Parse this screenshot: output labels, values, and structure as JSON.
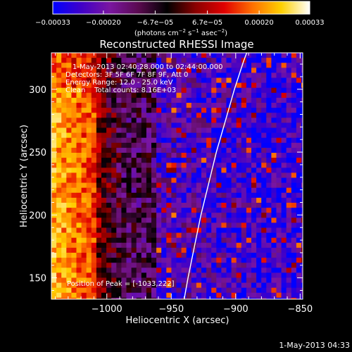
{
  "chart_data": {
    "type": "heatmap",
    "title": "Reconstructed RHESSI Image",
    "xlabel": "Heliocentric X (arcsec)",
    "ylabel": "Heliocentric Y (arcsec)",
    "xlim": [
      -1043,
      -848
    ],
    "ylim": [
      133,
      329
    ],
    "xticks": [
      -1000,
      -950,
      -900,
      -850
    ],
    "xtick_labels": [
      "−1000",
      "−950",
      "−900",
      "−850"
    ],
    "yticks": [
      150,
      200,
      250,
      300
    ],
    "ytick_labels": [
      "150",
      "200",
      "250",
      "300"
    ],
    "colorbar": {
      "range": [
        -0.00033,
        0.00033
      ],
      "ticks": [
        -0.00033,
        -0.0002,
        -6.7e-05,
        6.7e-05,
        0.0002,
        0.00033
      ],
      "tick_labels": [
        "−0.00033",
        "−0.00020",
        "−6.7e−05",
        "6.7e−05",
        "0.00020",
        "0.00033"
      ],
      "unit_label": [
        "(photons cm",
        "−2",
        " s",
        "−1",
        " asec",
        "−2",
        ")"
      ],
      "colormap": [
        "#0000ff",
        "#4000c8",
        "#7a16a0",
        "#5a0a50",
        "#000000",
        "#8a0000",
        "#e00000",
        "#ff7000",
        "#ffd000",
        "#ffffff"
      ]
    },
    "limb": {
      "points": [
        [
          -940,
          133
        ],
        [
          -937,
          150
        ],
        [
          -932,
          175
        ],
        [
          -927,
          200
        ],
        [
          -921,
          225
        ],
        [
          -915,
          250
        ],
        [
          -908,
          275
        ],
        [
          -901,
          300
        ],
        [
          -894,
          322
        ],
        [
          -890,
          333
        ]
      ]
    },
    "info_lines": [
      "1-May-2013 02:40:28.000 to 02:44:00.000",
      "Detectors: 3F 5F 6F 7F 8F 9F, Att 0",
      "Energy Range: 12.0 - 25.0 keV",
      "Clean    Total counts: 8.16E+03"
    ],
    "peak_label": "Position of Peak = [-1033,222]"
  },
  "footer": {
    "timestamp": "1-May-2013 04:33"
  }
}
